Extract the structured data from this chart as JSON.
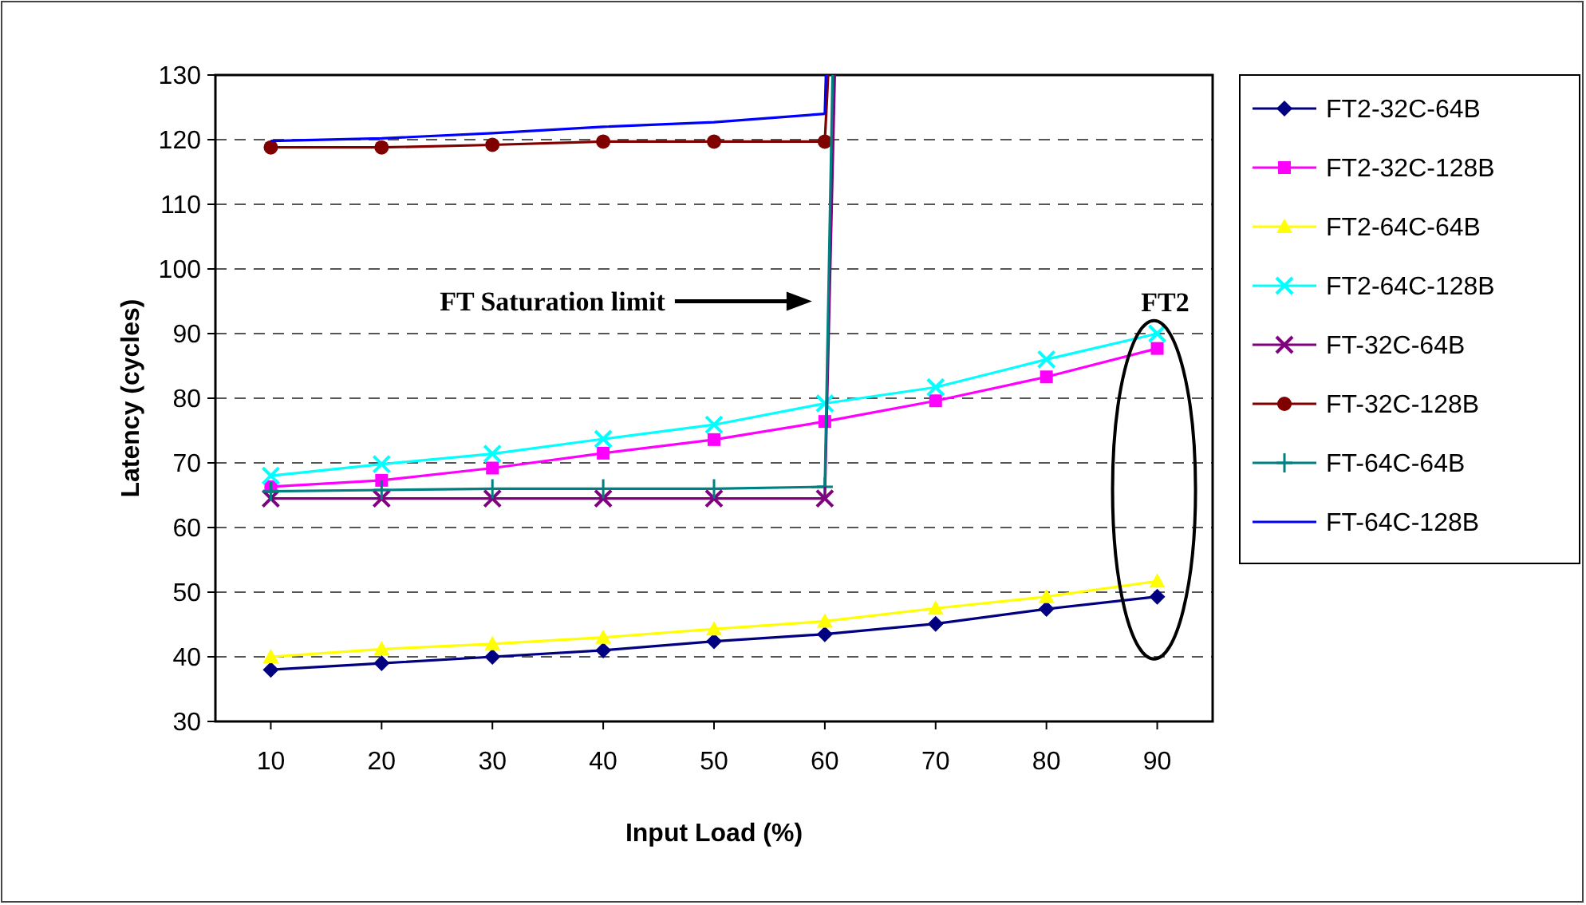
{
  "chart_data": {
    "type": "line",
    "xlabel": "Input Load (%)",
    "ylabel": "Latency (cycles)",
    "x": [
      10,
      20,
      30,
      40,
      50,
      60,
      70,
      80,
      90
    ],
    "xlim": [
      5,
      95
    ],
    "xticks": [
      10,
      20,
      30,
      40,
      50,
      60,
      70,
      80,
      90
    ],
    "ylim": [
      30,
      130
    ],
    "yticks": [
      30,
      40,
      50,
      60,
      70,
      80,
      90,
      100,
      110,
      120,
      130
    ],
    "grid": "y",
    "legend": "right",
    "line_style": "solid",
    "annotations": [
      "FT Saturation limit",
      {
        "text": "FT2",
        "x": 90,
        "y": 92
      }
    ],
    "series": [
      {
        "name": "FT2-32C-64B",
        "color": "#000080",
        "marker": "diamond",
        "values": [
          38,
          39,
          40,
          41,
          42.4,
          43.5,
          45.1,
          47.4,
          49.3
        ]
      },
      {
        "name": "FT2-32C-128B",
        "color": "#ff00ff",
        "marker": "square",
        "values": [
          66.3,
          67.3,
          69.2,
          71.5,
          73.6,
          76.4,
          79.6,
          83.3,
          87.7
        ]
      },
      {
        "name": "FT2-64C-64B",
        "color": "#ffff00",
        "marker": "triangle",
        "values": [
          40,
          41.2,
          42,
          43,
          44.3,
          45.5,
          47.5,
          49.3,
          51.7
        ]
      },
      {
        "name": "FT2-64C-128B",
        "color": "#00ffff",
        "marker": "cross",
        "values": [
          68,
          69.8,
          71.4,
          73.7,
          75.9,
          79.2,
          81.7,
          86,
          90
        ]
      },
      {
        "name": "FT-32C-64B",
        "color": "#800080",
        "marker": "cross",
        "x": [
          10,
          20,
          30,
          40,
          50,
          60
        ],
        "values": [
          64.5,
          64.5,
          64.5,
          64.5,
          64.5,
          64.5
        ]
      },
      {
        "name": "FT-32C-128B",
        "color": "#800000",
        "marker": "circle",
        "x": [
          10,
          20,
          30,
          40,
          50,
          60
        ],
        "values": [
          118.8,
          118.8,
          119.2,
          119.7,
          119.7,
          119.7
        ]
      },
      {
        "name": "FT-64C-64B",
        "color": "#008080",
        "marker": "plus",
        "x": [
          10,
          20,
          30,
          40,
          50,
          60
        ],
        "values": [
          65.6,
          65.8,
          66,
          66,
          66,
          66.3
        ]
      },
      {
        "name": "FT-64C-128B",
        "color": "#0000ff",
        "marker": "none",
        "x": [
          10,
          20,
          30,
          40,
          50,
          60
        ],
        "values": [
          119.8,
          120.2,
          121,
          122,
          122.7,
          124
        ]
      },
      {
        "color": "#800080",
        "marker": "none",
        "x": [
          60,
          60.9
        ],
        "values": [
          64.5,
          130
        ]
      },
      {
        "color": "#800000",
        "marker": "none",
        "x": [
          60,
          60.3
        ],
        "values": [
          119.7,
          130
        ]
      },
      {
        "color": "#008080",
        "marker": "none",
        "x": [
          60,
          60.7
        ],
        "values": [
          66.3,
          130
        ]
      },
      {
        "color": "#0000ff",
        "marker": "none",
        "x": [
          60,
          60.1
        ],
        "values": [
          124,
          130
        ]
      }
    ]
  }
}
